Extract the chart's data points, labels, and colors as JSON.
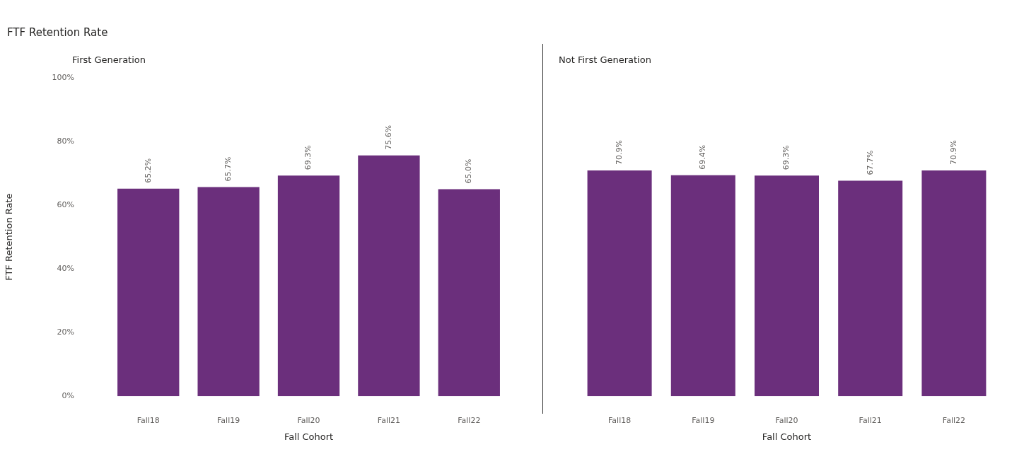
{
  "chart_data": [
    {
      "type": "bar",
      "title": "FTF Retention Rate",
      "subtitle": "First Generation",
      "xlabel": "Fall Cohort",
      "ylabel": "FTF Retention Rate",
      "categories": [
        "Fall18",
        "Fall19",
        "Fall20",
        "Fall21",
        "Fall22"
      ],
      "values": [
        65.2,
        65.7,
        69.3,
        75.6,
        65.0
      ],
      "value_labels": [
        "65.2%",
        "65.7%",
        "69.3%",
        "75.6%",
        "65.0%"
      ],
      "color": "#6b2f7c",
      "ylim": [
        0,
        100
      ],
      "yticks": [
        {
          "value": 0,
          "label": "0%"
        },
        {
          "value": 20,
          "label": "20%"
        },
        {
          "value": 40,
          "label": "40%"
        },
        {
          "value": 60,
          "label": "60%"
        },
        {
          "value": 80,
          "label": "80%"
        },
        {
          "value": 100,
          "label": "100%"
        }
      ]
    },
    {
      "type": "bar",
      "subtitle": "Not First Generation",
      "xlabel": "Fall Cohort",
      "categories": [
        "Fall18",
        "Fall19",
        "Fall20",
        "Fall21",
        "Fall22"
      ],
      "values": [
        70.9,
        69.4,
        69.3,
        67.7,
        70.9
      ],
      "value_labels": [
        "70.9%",
        "69.4%",
        "69.3%",
        "67.7%",
        "70.9%"
      ],
      "color": "#6b2f7c",
      "ylim": [
        0,
        100
      ],
      "tick_labels": "x"
    }
  ]
}
